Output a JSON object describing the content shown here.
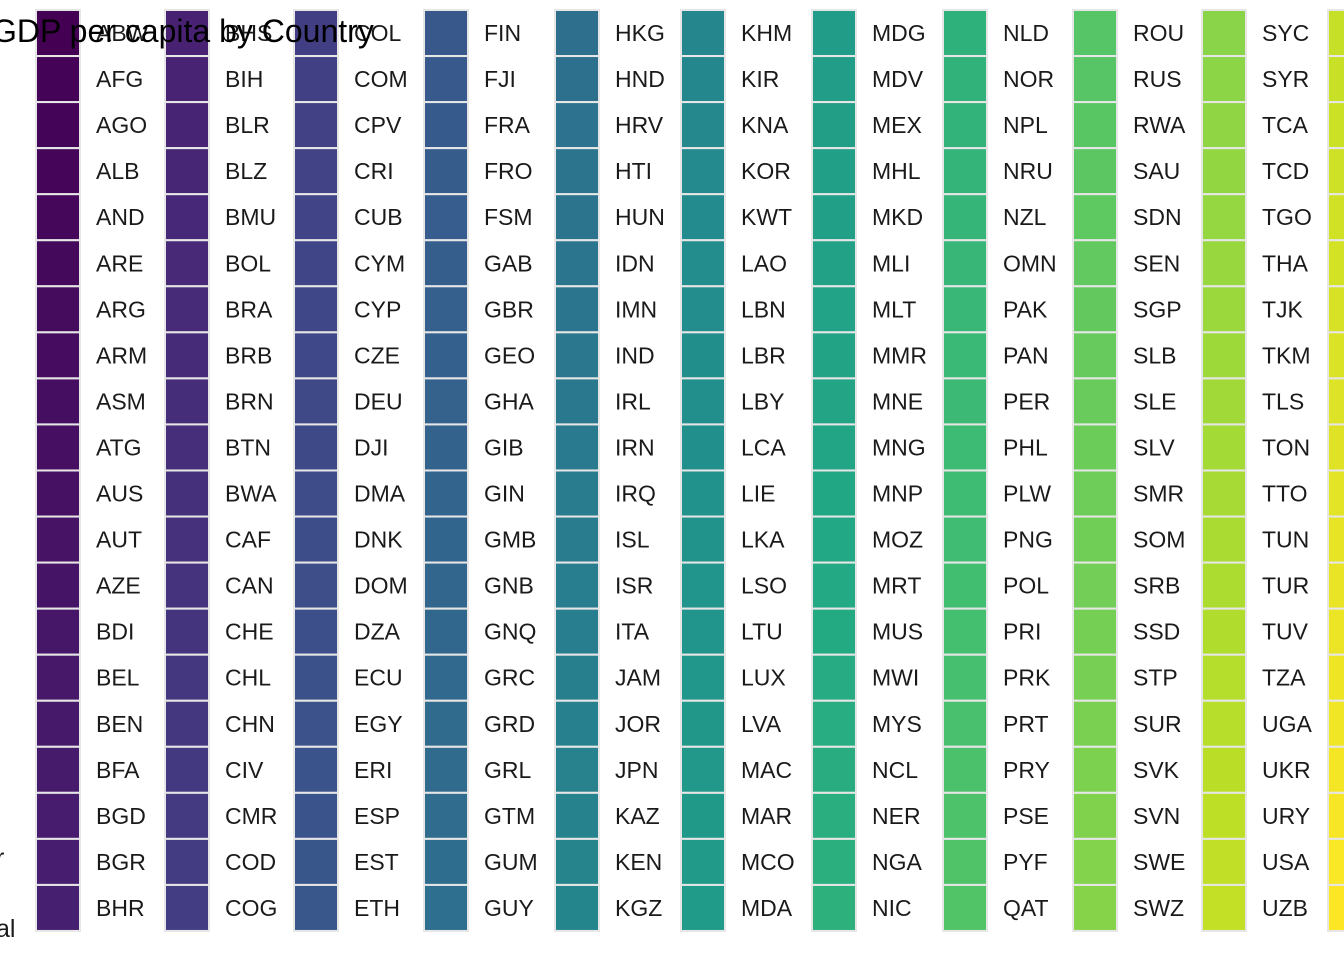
{
  "chart_data": {
    "type": "heatmap",
    "title": "GDP per capita by Country",
    "left_edge_text": [
      "r",
      "al"
    ],
    "colorscale": [
      "#440154",
      "#482475",
      "#414487",
      "#355f8d",
      "#2a788e",
      "#21918c",
      "#22a884",
      "#44bf70",
      "#7ad151",
      "#bddf26",
      "#fde725"
    ],
    "columns": [
      {
        "header": "ABW",
        "codes": [
          "AFG",
          "AGO",
          "ALB",
          "AND",
          "ARE",
          "ARG",
          "ARM",
          "ASM",
          "ATG",
          "AUS",
          "AUT",
          "AZE",
          "BDI",
          "BEL",
          "BEN",
          "BFA",
          "BGD",
          "BGR",
          "BHR"
        ]
      },
      {
        "header": "BHS",
        "codes": [
          "BIH",
          "BLR",
          "BLZ",
          "BMU",
          "BOL",
          "BRA",
          "BRB",
          "BRN",
          "BTN",
          "BWA",
          "CAF",
          "CAN",
          "CHE",
          "CHL",
          "CHN",
          "CIV",
          "CMR",
          "COD",
          "COG"
        ]
      },
      {
        "header": "COL",
        "codes": [
          "COM",
          "CPV",
          "CRI",
          "CUB",
          "CYM",
          "CYP",
          "CZE",
          "DEU",
          "DJI",
          "DMA",
          "DNK",
          "DOM",
          "DZA",
          "ECU",
          "EGY",
          "ERI",
          "ESP",
          "EST",
          "ETH"
        ]
      },
      {
        "header": "FIN",
        "codes": [
          "FJI",
          "FRA",
          "FRO",
          "FSM",
          "GAB",
          "GBR",
          "GEO",
          "GHA",
          "GIB",
          "GIN",
          "GMB",
          "GNB",
          "GNQ",
          "GRC",
          "GRD",
          "GRL",
          "GTM",
          "GUM",
          "GUY"
        ]
      },
      {
        "header": "HKG",
        "codes": [
          "HND",
          "HRV",
          "HTI",
          "HUN",
          "IDN",
          "IMN",
          "IND",
          "IRL",
          "IRN",
          "IRQ",
          "ISL",
          "ISR",
          "ITA",
          "JAM",
          "JOR",
          "JPN",
          "KAZ",
          "KEN",
          "KGZ"
        ]
      },
      {
        "header": "KHM",
        "codes": [
          "KIR",
          "KNA",
          "KOR",
          "KWT",
          "LAO",
          "LBN",
          "LBR",
          "LBY",
          "LCA",
          "LIE",
          "LKA",
          "LSO",
          "LTU",
          "LUX",
          "LVA",
          "MAC",
          "MAR",
          "MCO",
          "MDA"
        ]
      },
      {
        "header": "MDG",
        "codes": [
          "MDV",
          "MEX",
          "MHL",
          "MKD",
          "MLI",
          "MLT",
          "MMR",
          "MNE",
          "MNG",
          "MNP",
          "MOZ",
          "MRT",
          "MUS",
          "MWI",
          "MYS",
          "NCL",
          "NER",
          "NGA",
          "NIC"
        ]
      },
      {
        "header": "NLD",
        "codes": [
          "NOR",
          "NPL",
          "NRU",
          "NZL",
          "OMN",
          "PAK",
          "PAN",
          "PER",
          "PHL",
          "PLW",
          "PNG",
          "POL",
          "PRI",
          "PRK",
          "PRT",
          "PRY",
          "PSE",
          "PYF",
          "QAT"
        ]
      },
      {
        "header": "ROU",
        "codes": [
          "RUS",
          "RWA",
          "SAU",
          "SDN",
          "SEN",
          "SGP",
          "SLB",
          "SLE",
          "SLV",
          "SMR",
          "SOM",
          "SRB",
          "SSD",
          "STP",
          "SUR",
          "SVK",
          "SVN",
          "SWE",
          "SWZ"
        ]
      },
      {
        "header": "SYC",
        "codes": [
          "SYR",
          "TCA",
          "TCD",
          "TGO",
          "THA",
          "TJK",
          "TKM",
          "TLS",
          "TON",
          "TTO",
          "TUN",
          "TUR",
          "TUV",
          "TZA",
          "UGA",
          "UKR",
          "URY",
          "USA",
          "UZB"
        ]
      },
      {
        "header": "",
        "codes": [
          "",
          "",
          "",
          "",
          "",
          "",
          "",
          "",
          "",
          "",
          "",
          "",
          "",
          "",
          "",
          "",
          "",
          "",
          ""
        ]
      }
    ]
  }
}
